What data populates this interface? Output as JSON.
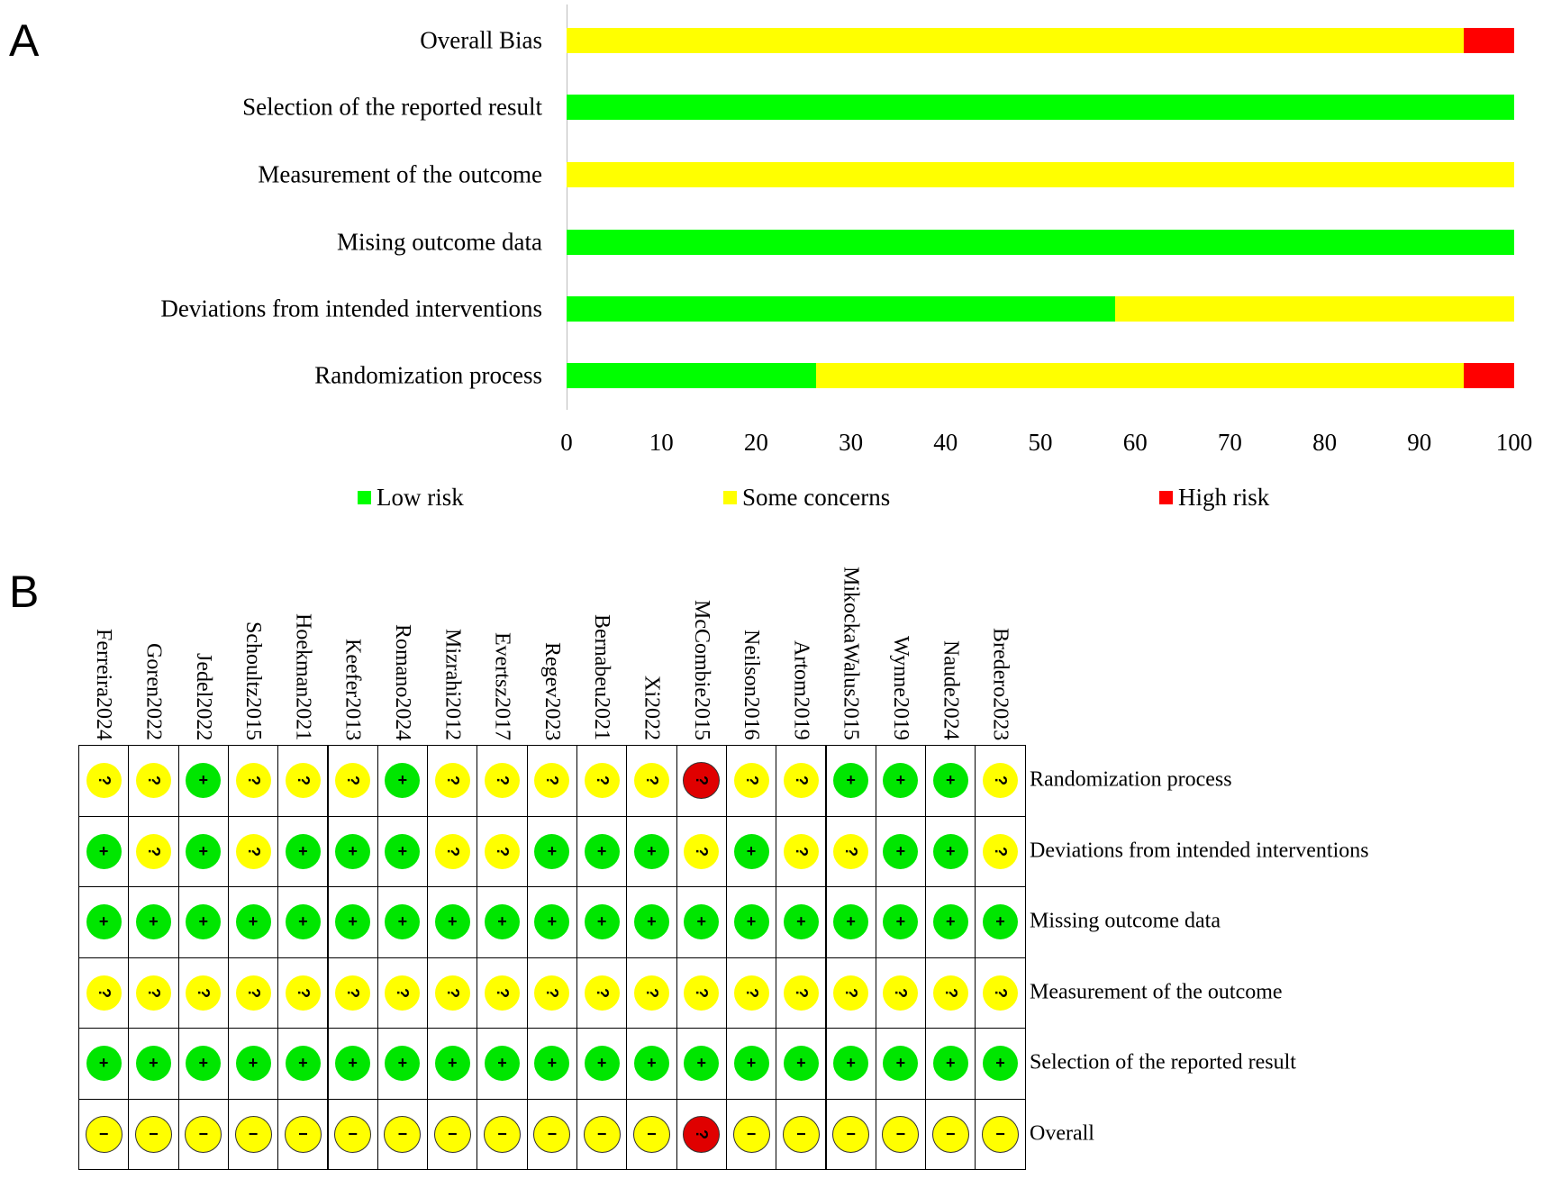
{
  "panels": {
    "a": "A",
    "b": "B"
  },
  "chart_data": {
    "type": "bar",
    "orientation": "horizontal-stacked",
    "categories": [
      "Overall Bias",
      "Selection of the reported result",
      "Measurement of the outcome",
      "Mising outcome data",
      "Deviations from intended interventions",
      "Randomization process"
    ],
    "series": [
      {
        "name": "Low risk",
        "color": "#00ff00",
        "values": [
          0,
          100,
          0,
          100,
          57.9,
          26.3
        ]
      },
      {
        "name": "Some concerns",
        "color": "#ffff00",
        "values": [
          94.7,
          0,
          100,
          0,
          42.1,
          68.4
        ]
      },
      {
        "name": "High risk",
        "color": "#ff0000",
        "values": [
          5.3,
          0,
          0,
          0,
          0,
          5.3
        ]
      }
    ],
    "xlim": [
      0,
      100
    ],
    "xticks": [
      "0",
      "10",
      "20",
      "30",
      "40",
      "50",
      "60",
      "70",
      "80",
      "90",
      "100"
    ],
    "legend": "bottom"
  },
  "traffic_light": {
    "studies": [
      "Ferreira2024",
      "Goren2022",
      "Jedel2022",
      "Schoultz2015",
      "Hoekman2021",
      "Keefer2013",
      "Romano2024",
      "Mizrahi2012",
      "Evertsz2017",
      "Regev2023",
      "Bernabeu2021",
      "Xi2022",
      "McCombie2015",
      "Neilson2016",
      "Artom2019",
      "MikockaWalus2015",
      "Wynne2019",
      "Naude2024",
      "Bredero2023"
    ],
    "domains": [
      "Randomization process",
      "Deviations from intended interventions",
      "Missing outcome data",
      "Measurement of the outcome",
      "Selection of the reported result",
      "Overall"
    ],
    "judgements": [
      "SSLSSSLSSSSSHSSLLLS",
      "LSLSLLLSSLLLSLSSLLS",
      "LLLLLLLLLLLLLLLLLLL",
      "SSSSSSSSSSSSSSSSSSS",
      "LLLLLLLLLLLLLLLLLLL",
      "OOOOOOOOOOOOHOOOOOO"
    ],
    "symbols": {
      "L": "+",
      "S": "?",
      "H": "?",
      "O": "−"
    },
    "colors": {
      "L": "#00e600",
      "S": "#ffff00",
      "H": "#e00000",
      "O": "#ffff00"
    }
  }
}
